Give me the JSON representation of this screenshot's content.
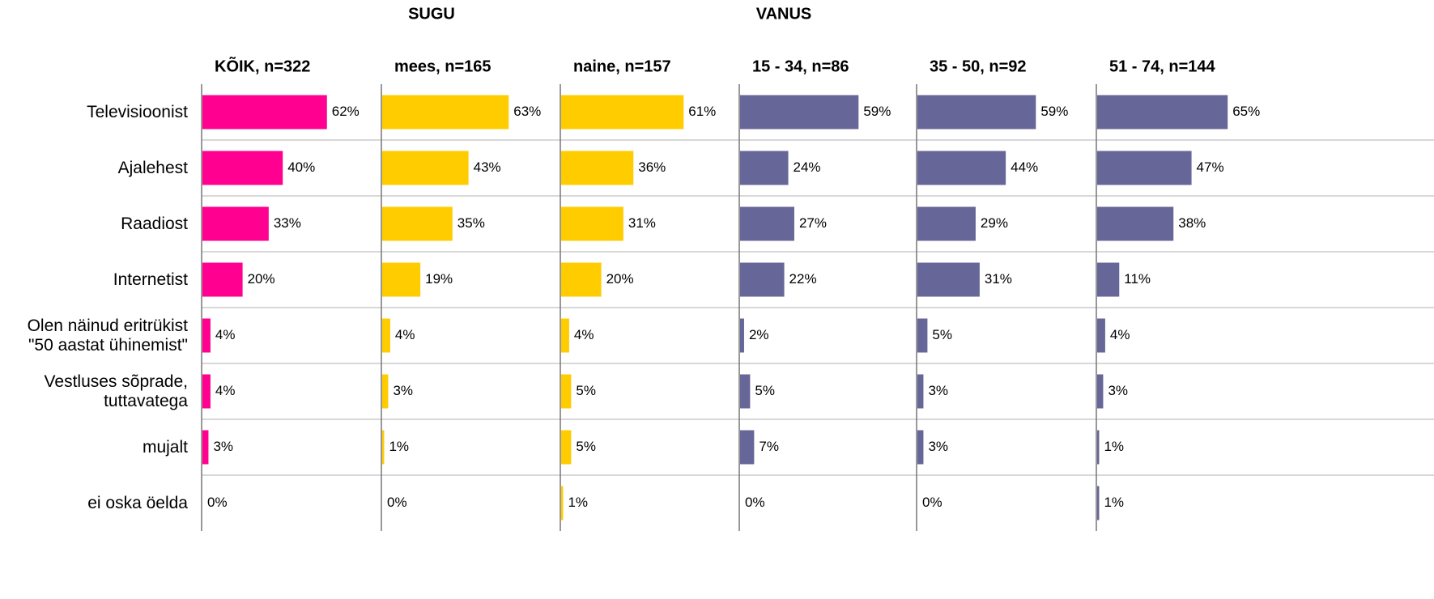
{
  "chart_data": {
    "type": "bar",
    "groups": [
      "SUGU",
      "VANUS"
    ],
    "categories": [
      "Televisioonist",
      "Ajalehest",
      "Raadiost",
      "Internetist",
      "Olen näinud eritrükist\n\"50 aastat ühinemist\"",
      "Vestluses sõprade,\ntuttavatega",
      "mujalt",
      "ei oska öelda"
    ],
    "series": [
      {
        "name": "KÕIK, n=322",
        "color": "#ff0090",
        "values": [
          62,
          40,
          33,
          20,
          4,
          4,
          3,
          0
        ],
        "value_labels": [
          "62%",
          "40%",
          "33%",
          "20%",
          "4%",
          "4%",
          "3%",
          "0%"
        ]
      },
      {
        "name": "mees, n=165",
        "color": "#ffcc00",
        "values": [
          63,
          43,
          35,
          19,
          4,
          3,
          1,
          0
        ],
        "value_labels": [
          "63%",
          "43%",
          "35%",
          "19%",
          "4%",
          "3%",
          "1%",
          "0%"
        ]
      },
      {
        "name": "naine, n=157",
        "color": "#ffcc00",
        "values": [
          61,
          36,
          31,
          20,
          4,
          5,
          5,
          1
        ],
        "value_labels": [
          "61%",
          "36%",
          "31%",
          "20%",
          "4%",
          "5%",
          "5%",
          "1%"
        ]
      },
      {
        "name": "15 - 34, n=86",
        "color": "#666699",
        "values": [
          59,
          24,
          27,
          22,
          2,
          5,
          7,
          0
        ],
        "value_labels": [
          "59%",
          "24%",
          "27%",
          "22%",
          "2%",
          "5%",
          "7%",
          "0%"
        ]
      },
      {
        "name": "35 - 50, n=92",
        "color": "#666699",
        "values": [
          59,
          44,
          29,
          31,
          5,
          3,
          3,
          0
        ],
        "value_labels": [
          "59%",
          "44%",
          "29%",
          "31%",
          "5%",
          "3%",
          "3%",
          "0%"
        ]
      },
      {
        "name": "51 - 74, n=144",
        "color": "#666699",
        "values": [
          65,
          47,
          38,
          11,
          4,
          3,
          1,
          1
        ],
        "value_labels": [
          "65%",
          "47%",
          "38%",
          "11%",
          "4%",
          "3%",
          "1%",
          "1%"
        ]
      }
    ]
  }
}
